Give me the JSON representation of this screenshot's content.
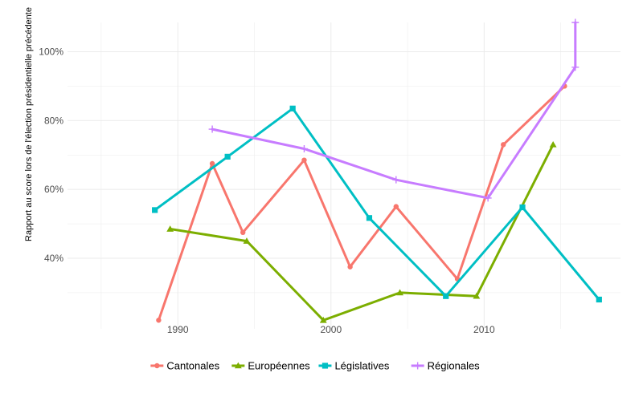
{
  "chart_data": {
    "type": "line",
    "title": "",
    "xlabel": "",
    "ylabel": "Rapport au score lors de l'élection présidentielle précédente",
    "xlim": [
      1982.8,
      2018.9
    ],
    "ylim": [
      0.195,
      1.085
    ],
    "x_ticks": [
      1990,
      2000,
      2010
    ],
    "y_ticks": [
      0.4,
      0.6,
      0.8,
      1.0
    ],
    "y_tick_labels": [
      "40%",
      "60%",
      "80%",
      "100%"
    ],
    "grid": true,
    "legend_position": "bottom",
    "series": [
      {
        "name": "Cantonales",
        "color": "#F8766D",
        "marker": "circle",
        "x": [
          1988.75,
          1992.25,
          1994.25,
          1998.25,
          2001.25,
          2004.25,
          2008.25,
          2011.25,
          2015.25
        ],
        "y": [
          0.22,
          0.675,
          0.475,
          0.685,
          0.375,
          0.55,
          0.34,
          0.73,
          0.9
        ]
      },
      {
        "name": "Européennes",
        "color": "#7CAE00",
        "marker": "triangle",
        "x": [
          1989.5,
          1994.5,
          1999.5,
          2004.5,
          2009.5,
          2014.5
        ],
        "y": [
          0.485,
          0.45,
          0.22,
          0.3,
          0.29,
          0.73
        ]
      },
      {
        "name": "Législatives",
        "color": "#00BFC4",
        "marker": "square",
        "x": [
          1988.5,
          1993.25,
          1997.5,
          2002.5,
          2007.5,
          2012.5,
          2017.5
        ],
        "y": [
          0.54,
          0.695,
          0.835,
          0.517,
          0.29,
          0.548,
          0.28
        ]
      },
      {
        "name": "Régionales",
        "color": "#C77CFF",
        "marker": "plus",
        "x": [
          1992.25,
          1998.25,
          2004.25,
          2010.25,
          2015.95,
          2015.95
        ],
        "y": [
          0.775,
          0.718,
          0.628,
          0.575,
          0.955,
          1.085
        ]
      }
    ]
  }
}
